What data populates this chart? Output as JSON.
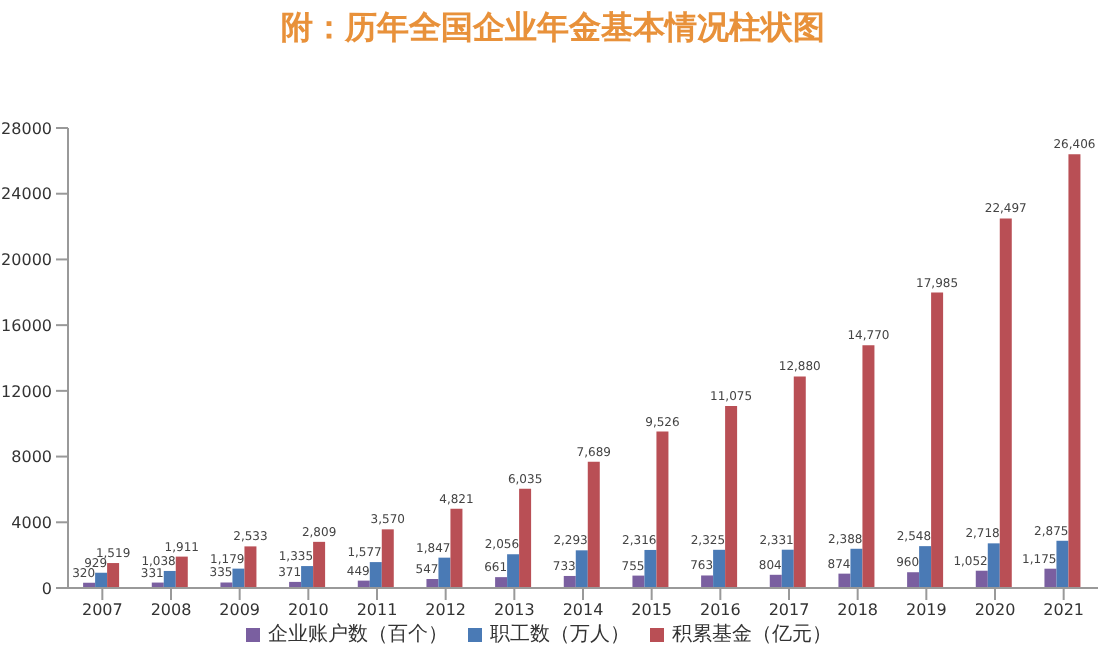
{
  "chart_data": {
    "type": "bar",
    "title": "附：历年全国企业年金基本情况柱状图",
    "categories": [
      "2007",
      "2008",
      "2009",
      "2010",
      "2011",
      "2012",
      "2013",
      "2014",
      "2015",
      "2016",
      "2017",
      "2018",
      "2019",
      "2020",
      "2021"
    ],
    "series": [
      {
        "name": "企业账户数（百个）",
        "color": "#7a5fa0",
        "values": [
          320,
          331,
          335,
          371,
          449,
          547,
          661,
          733,
          755,
          763,
          804,
          874,
          960,
          1052,
          1175
        ],
        "value_labels": [
          "320",
          "331",
          "335",
          "371",
          "449",
          "547",
          "661",
          "733",
          "755",
          "763",
          "804",
          "874",
          "960",
          "1,052",
          "1,175"
        ]
      },
      {
        "name": "职工数（万人）",
        "color": "#4a7ab5",
        "values": [
          929,
          1038,
          1179,
          1335,
          1577,
          1847,
          2056,
          2293,
          2316,
          2325,
          2331,
          2388,
          2548,
          2718,
          2875
        ],
        "value_labels": [
          "929",
          "1,038",
          "1,179",
          "1,335",
          "1,577",
          "1,847",
          "2,056",
          "2,293",
          "2,316",
          "2,325",
          "2,331",
          "2,388",
          "2,548",
          "2,718",
          "2,875"
        ]
      },
      {
        "name": "积累基金（亿元）",
        "color": "#b94f55",
        "values": [
          1519,
          1911,
          2533,
          2809,
          3570,
          4821,
          6035,
          7689,
          9526,
          11075,
          12880,
          14770,
          17985,
          22497,
          26406
        ],
        "value_labels": [
          "1,519",
          "1,911",
          "2,533",
          "2,809",
          "3,570",
          "4,821",
          "6,035",
          "7,689",
          "9,526",
          "11,075",
          "12,880",
          "14,770",
          "17,985",
          "22,497",
          "26,406"
        ]
      }
    ],
    "ylim": [
      0,
      28000
    ],
    "yticks": [
      0,
      4000,
      8000,
      12000,
      16000,
      20000,
      24000,
      28000
    ],
    "grid": false,
    "legend": "bottom"
  }
}
